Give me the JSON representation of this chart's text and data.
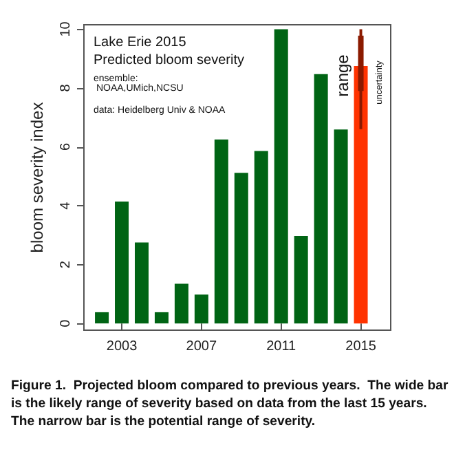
{
  "chart_data": {
    "type": "bar",
    "title": "Lake Erie 2015",
    "subtitle": "Predicted bloom severity",
    "ylabel": "bloom severity index",
    "series": [
      {
        "color": "#006414",
        "x": [
          2002,
          2003,
          2004,
          2005,
          2006,
          2007,
          2008,
          2009,
          2010,
          2011,
          2012,
          2013,
          2014
        ],
        "values": [
          0.38,
          4.14,
          2.75,
          0.38,
          1.35,
          0.98,
          6.25,
          5.12,
          5.86,
          10,
          2.97,
          8.47,
          6.59
        ]
      },
      {
        "color": "#ff3300",
        "x": [
          2015
        ],
        "values": [
          8.75
        ]
      },
      {
        "color": "#8b1a00",
        "x": [
          2015
        ],
        "base": [
          7.9
        ],
        "values": [
          1.88
        ],
        "errors": [
          [
            6.6,
            10
          ]
        ]
      }
    ],
    "xlim": [
      2001.1,
      2016.5
    ],
    "xticks": [
      2003,
      2007,
      2011,
      2015
    ],
    "ylim": [
      -0.23,
      10.15
    ],
    "yticks": [
      0,
      2,
      4,
      6,
      8,
      10
    ],
    "grid": false,
    "annotations": [
      "ensemble:\n NOAA,UMich,NCSU",
      "data: Heidelberg Univ & NOAA",
      "range",
      "uncertainty",
      "Figure 1.  Projected bloom compared to previous years.  The wide bar is the likely range of severity based on data from the last 15 years.  The narrow bar is the potential range of severity."
    ]
  }
}
